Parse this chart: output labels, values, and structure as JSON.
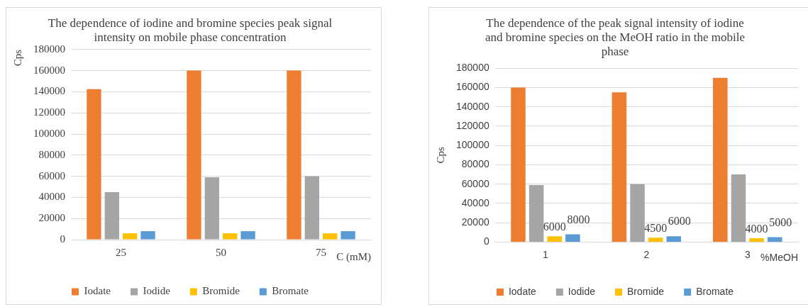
{
  "chart_data": [
    {
      "type": "bar",
      "title": "The dependence of iodine and bromine species peak signal intensity on mobile phase concentration",
      "xlabel": "C (mM)",
      "ylabel": "Cps",
      "categories": [
        "25",
        "50",
        "75"
      ],
      "series": [
        {
          "name": "Iodate",
          "color": "#ed7d31",
          "values": [
            142500,
            160000,
            160000
          ]
        },
        {
          "name": "Iodide",
          "color": "#a5a5a5",
          "values": [
            45000,
            59000,
            60000
          ]
        },
        {
          "name": "Bromide",
          "color": "#ffc000",
          "values": [
            6000,
            6000,
            6000
          ]
        },
        {
          "name": "Bromate",
          "color": "#5b9bd5",
          "values": [
            8000,
            8000,
            8000
          ]
        }
      ],
      "ylim": [
        0,
        180000
      ],
      "yticks": [
        0,
        20000,
        40000,
        60000,
        80000,
        100000,
        120000,
        140000,
        160000,
        180000
      ],
      "grid": "y",
      "legend": "bottom"
    },
    {
      "type": "bar",
      "title": "The dependence of the peak signal intensity of iodine and bromine species on the MeOH ratio in the mobile phase",
      "xlabel": "%MeOH",
      "ylabel": "Cps",
      "categories": [
        "1",
        "2",
        "3"
      ],
      "series": [
        {
          "name": "Iodate",
          "color": "#ed7d31",
          "values": [
            160000,
            155000,
            170000
          ]
        },
        {
          "name": "Iodide",
          "color": "#a5a5a5",
          "values": [
            59000,
            60000,
            70000
          ]
        },
        {
          "name": "Bromide",
          "color": "#ffc000",
          "values": [
            6000,
            4500,
            4000
          ],
          "value_labels": [
            "6000",
            "4500",
            "4000"
          ]
        },
        {
          "name": "Bromate",
          "color": "#5b9bd5",
          "values": [
            8000,
            6000,
            5000
          ],
          "value_labels": [
            "8000",
            "6000",
            "5000"
          ]
        }
      ],
      "ylim": [
        0,
        180000
      ],
      "yticks": [
        0,
        20000,
        40000,
        60000,
        80000,
        100000,
        120000,
        140000,
        160000,
        180000
      ],
      "grid": "y",
      "legend": "bottom"
    }
  ]
}
